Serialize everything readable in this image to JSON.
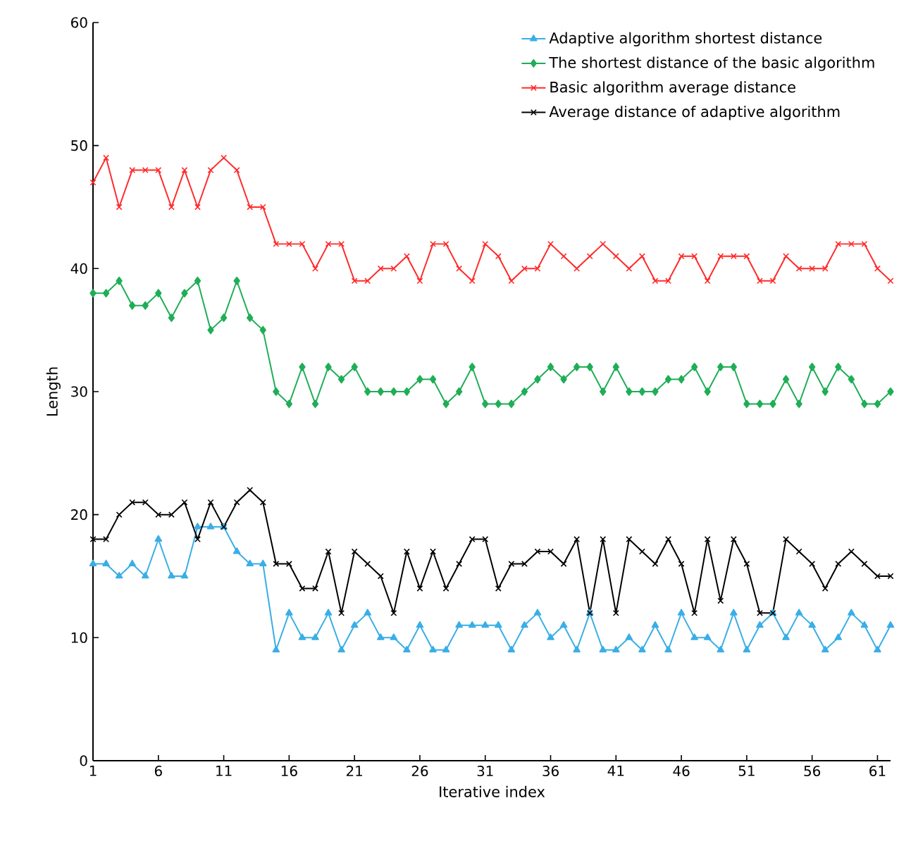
{
  "chart_data": {
    "type": "line",
    "xlabel": "Iterative index",
    "ylabel": "Length",
    "x": [
      1,
      2,
      3,
      4,
      5,
      6,
      7,
      8,
      9,
      10,
      11,
      12,
      13,
      14,
      15,
      16,
      17,
      18,
      19,
      20,
      21,
      22,
      23,
      24,
      25,
      26,
      27,
      28,
      29,
      30,
      31,
      32,
      33,
      34,
      35,
      36,
      37,
      38,
      39,
      40,
      41,
      42,
      43,
      44,
      45,
      46,
      47,
      48,
      49,
      50,
      51,
      52,
      53,
      54,
      55,
      56,
      57,
      58,
      59,
      60,
      61,
      62
    ],
    "xlim": [
      1,
      62
    ],
    "xticks": [
      1,
      6,
      11,
      16,
      21,
      26,
      31,
      36,
      41,
      46,
      51,
      56,
      61
    ],
    "ylim": [
      0,
      60
    ],
    "yticks": [
      0,
      10,
      20,
      30,
      40,
      50,
      60
    ],
    "grid": false,
    "legend": "top right",
    "line_style": "solid",
    "series": [
      {
        "name": "Adaptive algorithm shortest distance",
        "color": "#3aaee6",
        "marker": "triangle",
        "values": [
          16,
          16,
          15,
          16,
          15,
          18,
          15,
          15,
          19,
          19,
          19,
          17,
          16,
          16,
          9,
          12,
          10,
          10,
          12,
          9,
          11,
          12,
          10,
          10,
          9,
          11,
          9,
          9,
          11,
          11,
          11,
          11,
          9,
          11,
          12,
          10,
          11,
          9,
          12,
          9,
          9,
          10,
          9,
          11,
          9,
          12,
          10,
          10,
          9,
          12,
          9,
          11,
          12,
          10,
          12,
          11,
          9,
          10,
          12,
          11,
          9,
          11
        ]
      },
      {
        "name": "The shortest distance of the basic algorithm",
        "color": "#1fae57",
        "marker": "diamond",
        "values": [
          38,
          38,
          39,
          37,
          37,
          38,
          36,
          38,
          39,
          35,
          36,
          39,
          36,
          35,
          30,
          29,
          32,
          29,
          32,
          31,
          32,
          30,
          30,
          30,
          30,
          31,
          31,
          29,
          30,
          32,
          29,
          29,
          29,
          30,
          31,
          32,
          31,
          32,
          32,
          30,
          32,
          30,
          30,
          30,
          31,
          31,
          32,
          30,
          32,
          32,
          29,
          29,
          29,
          31,
          29,
          32,
          30,
          32,
          31,
          29,
          29,
          30
        ]
      },
      {
        "name": "Basic algorithm average distance",
        "color": "#ff2b2b",
        "marker": "cross",
        "values": [
          47,
          49,
          45,
          48,
          48,
          48,
          45,
          48,
          45,
          48,
          49,
          48,
          45,
          45,
          42,
          42,
          42,
          40,
          42,
          42,
          39,
          39,
          40,
          40,
          41,
          39,
          42,
          42,
          40,
          39,
          42,
          41,
          39,
          40,
          40,
          42,
          41,
          40,
          41,
          42,
          41,
          40,
          41,
          39,
          39,
          41,
          41,
          39,
          41,
          41,
          41,
          39,
          39,
          41,
          40,
          40,
          40,
          42,
          42,
          42,
          40,
          39
        ]
      },
      {
        "name": "Average distance of adaptive algorithm",
        "color": "#000000",
        "marker": "cross",
        "values": [
          18,
          18,
          20,
          21,
          21,
          20,
          20,
          21,
          18,
          21,
          19,
          21,
          22,
          21,
          16,
          16,
          14,
          14,
          17,
          12,
          17,
          16,
          15,
          12,
          17,
          14,
          17,
          14,
          16,
          18,
          18,
          14,
          16,
          16,
          17,
          17,
          16,
          18,
          12,
          18,
          12,
          18,
          17,
          16,
          18,
          16,
          12,
          18,
          13,
          18,
          16,
          12,
          12,
          18,
          17,
          16,
          14,
          16,
          17,
          16,
          15,
          15
        ]
      }
    ]
  }
}
